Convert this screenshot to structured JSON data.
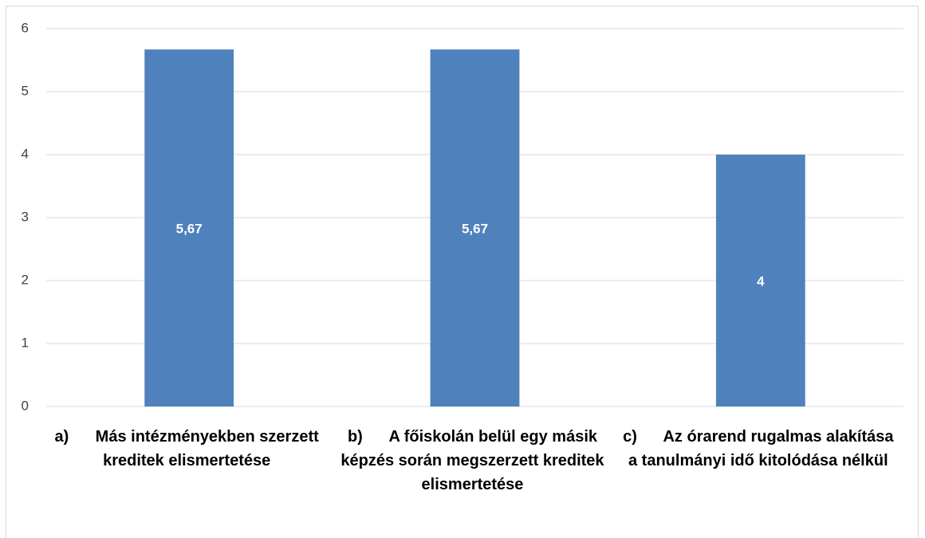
{
  "chart_data": {
    "type": "bar",
    "categories": [
      "a)      Más intézményekben szerzett kreditek elismertetése",
      "b)      A főiskolán belül egy másik képzés során megszerzett kreditek elismertetése",
      "c)      Az órarend rugalmas alakítása a tanulmányi idő kitolódása nélkül"
    ],
    "values": [
      5.67,
      5.67,
      4
    ],
    "value_labels": [
      "5,67",
      "5,67",
      "4"
    ],
    "color": "#4f81bd",
    "ylim": [
      0,
      6
    ],
    "yticks": [
      0,
      1,
      2,
      3,
      4,
      5,
      6
    ],
    "grid": true
  }
}
